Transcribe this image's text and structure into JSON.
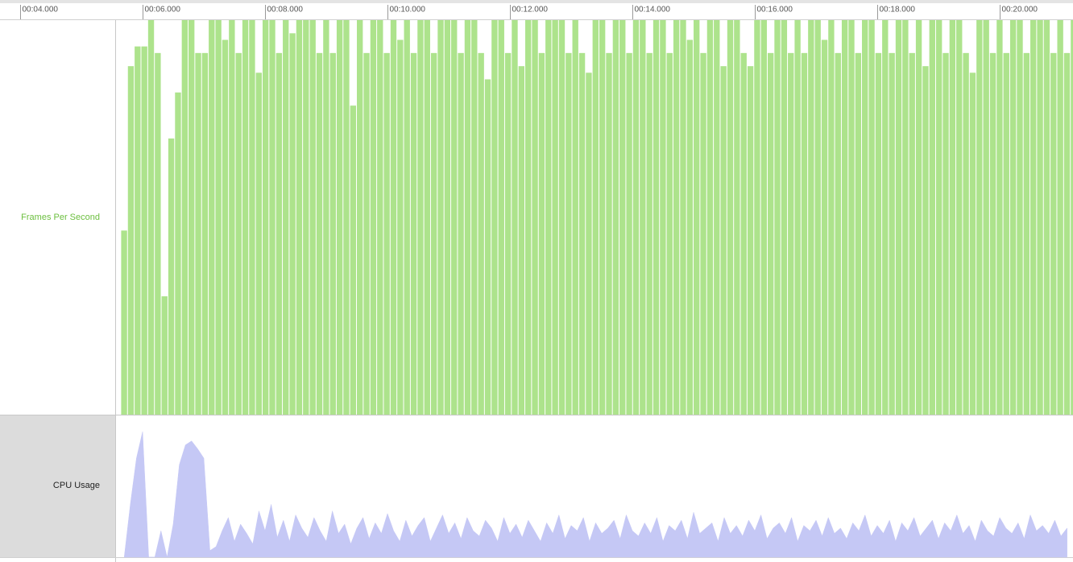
{
  "chart_data": [
    {
      "type": "bar",
      "name": "Frames Per Second",
      "color": "#ade38c",
      "xlim": [
        3.671,
        21.197
      ],
      "xticks": [
        {
          "value": 4,
          "label": "00:04.000"
        },
        {
          "value": 6,
          "label": "00:06.000"
        },
        {
          "value": 8,
          "label": "00:08.000"
        },
        {
          "value": 10,
          "label": "00:10.000"
        },
        {
          "value": 12,
          "label": "00:12.000"
        },
        {
          "value": 14,
          "label": "00:14.000"
        },
        {
          "value": 16,
          "label": "00:16.000"
        },
        {
          "value": 18,
          "label": "00:18.000"
        },
        {
          "value": 20,
          "label": "00:20.000"
        }
      ],
      "ylim": [
        0,
        60
      ],
      "x": [
        5.65,
        5.76,
        5.87,
        5.98,
        6.09,
        6.2,
        6.31,
        6.42,
        6.53,
        6.64,
        6.75,
        6.86,
        6.97,
        7.08,
        7.19,
        7.3,
        7.41,
        7.52,
        7.63,
        7.74,
        7.85,
        7.96,
        8.07,
        8.18,
        8.29,
        8.4,
        8.51,
        8.62,
        8.73,
        8.84,
        8.95,
        9.06,
        9.17,
        9.28,
        9.39,
        9.5,
        9.61,
        9.72,
        9.83,
        9.94,
        10.05,
        10.16,
        10.27,
        10.38,
        10.49,
        10.6,
        10.71,
        10.82,
        10.93,
        11.04,
        11.15,
        11.26,
        11.37,
        11.48,
        11.59,
        11.7,
        11.81,
        11.92,
        12.03,
        12.14,
        12.25,
        12.36,
        12.47,
        12.58,
        12.69,
        12.8,
        12.91,
        13.02,
        13.13,
        13.24,
        13.35,
        13.46,
        13.57,
        13.68,
        13.79,
        13.9,
        14.01,
        14.12,
        14.23,
        14.34,
        14.45,
        14.56,
        14.67,
        14.78,
        14.89,
        15,
        15.11,
        15.22,
        15.33,
        15.44,
        15.55,
        15.66,
        15.77,
        15.88,
        15.99,
        16.1,
        16.21,
        16.32,
        16.43,
        16.54,
        16.65,
        16.76,
        16.87,
        16.98,
        17.09,
        17.2,
        17.31,
        17.42,
        17.53,
        17.64,
        17.75,
        17.86,
        17.97,
        18.08,
        18.19,
        18.3,
        18.41,
        18.52,
        18.63,
        18.74,
        18.85,
        18.96,
        19.07,
        19.18,
        19.29,
        19.4,
        19.51,
        19.62,
        19.73,
        19.84,
        19.95,
        20.06,
        20.17,
        20.28,
        20.39,
        20.5,
        20.61,
        20.72,
        20.83,
        20.94,
        21.05,
        21.16
      ],
      "values": [
        28,
        53,
        56,
        56,
        60,
        55,
        18,
        42,
        49,
        60,
        60,
        55,
        55,
        60,
        60,
        57,
        60,
        55,
        60,
        60,
        52,
        60,
        60,
        55,
        60,
        58,
        60,
        60,
        60,
        55,
        60,
        55,
        60,
        60,
        47,
        60,
        55,
        60,
        60,
        55,
        60,
        57,
        60,
        55,
        60,
        60,
        55,
        60,
        60,
        60,
        55,
        60,
        60,
        55,
        51,
        60,
        60,
        55,
        60,
        53,
        60,
        60,
        55,
        60,
        60,
        60,
        55,
        60,
        55,
        52,
        60,
        60,
        55,
        60,
        60,
        55,
        60,
        60,
        55,
        60,
        60,
        55,
        60,
        60,
        57,
        60,
        55,
        60,
        60,
        53,
        60,
        60,
        55,
        53,
        60,
        60,
        55,
        60,
        60,
        55,
        60,
        55,
        60,
        60,
        57,
        60,
        55,
        60,
        60,
        55,
        60,
        60,
        55,
        60,
        55,
        60,
        60,
        55,
        60,
        53,
        60,
        60,
        55,
        60,
        60,
        55,
        52,
        60,
        60,
        55,
        60,
        55,
        60,
        60,
        55,
        60,
        60,
        60,
        55,
        60,
        55,
        60
      ]
    },
    {
      "type": "area",
      "name": "CPU Usage",
      "color": "#c5c8f5",
      "xlim": [
        3.671,
        21.197
      ],
      "ylim": [
        0,
        100
      ],
      "x": [
        5.7,
        5.8,
        5.9,
        6,
        6.1,
        6.2,
        6.3,
        6.4,
        6.5,
        6.6,
        6.7,
        6.8,
        6.9,
        7,
        7.1,
        7.2,
        7.3,
        7.4,
        7.5,
        7.6,
        7.7,
        7.8,
        7.9,
        8,
        8.1,
        8.2,
        8.3,
        8.4,
        8.5,
        8.6,
        8.7,
        8.8,
        8.9,
        9,
        9.1,
        9.2,
        9.3,
        9.4,
        9.5,
        9.6,
        9.7,
        9.8,
        9.9,
        10,
        10.1,
        10.2,
        10.3,
        10.4,
        10.5,
        10.6,
        10.7,
        10.8,
        10.9,
        11,
        11.1,
        11.2,
        11.3,
        11.4,
        11.5,
        11.6,
        11.7,
        11.8,
        11.9,
        12,
        12.1,
        12.2,
        12.3,
        12.4,
        12.5,
        12.6,
        12.7,
        12.8,
        12.9,
        13,
        13.1,
        13.2,
        13.3,
        13.4,
        13.5,
        13.6,
        13.7,
        13.8,
        13.9,
        14,
        14.1,
        14.2,
        14.3,
        14.4,
        14.5,
        14.6,
        14.7,
        14.8,
        14.9,
        15,
        15.1,
        15.2,
        15.3,
        15.4,
        15.5,
        15.6,
        15.7,
        15.8,
        15.9,
        16,
        16.1,
        16.2,
        16.3,
        16.4,
        16.5,
        16.6,
        16.7,
        16.8,
        16.9,
        17,
        17.1,
        17.2,
        17.3,
        17.4,
        17.5,
        17.6,
        17.7,
        17.8,
        17.9,
        18,
        18.1,
        18.2,
        18.3,
        18.4,
        18.5,
        18.6,
        18.7,
        18.8,
        18.9,
        19,
        19.1,
        19.2,
        19.3,
        19.4,
        19.5,
        19.6,
        19.7,
        19.8,
        19.9,
        20,
        20.1,
        20.2,
        20.3,
        20.4,
        20.5,
        20.6,
        20.7,
        20.8,
        20.9,
        21,
        21.1
      ],
      "values": [
        0,
        40,
        75,
        95,
        0,
        0,
        20,
        0,
        25,
        70,
        85,
        88,
        82,
        75,
        5,
        8,
        20,
        30,
        12,
        25,
        18,
        10,
        35,
        20,
        40,
        15,
        28,
        12,
        32,
        22,
        15,
        30,
        20,
        12,
        35,
        18,
        25,
        10,
        22,
        30,
        14,
        26,
        18,
        33,
        20,
        12,
        28,
        16,
        24,
        30,
        12,
        22,
        32,
        18,
        26,
        14,
        30,
        20,
        16,
        28,
        22,
        12,
        30,
        18,
        25,
        15,
        28,
        20,
        12,
        26,
        18,
        32,
        14,
        24,
        20,
        30,
        12,
        26,
        18,
        22,
        28,
        14,
        32,
        20,
        16,
        26,
        18,
        30,
        12,
        24,
        20,
        28,
        14,
        34,
        18,
        22,
        26,
        12,
        30,
        18,
        24,
        16,
        28,
        20,
        32,
        14,
        22,
        26,
        18,
        30,
        12,
        24,
        20,
        28,
        16,
        30,
        18,
        22,
        14,
        26,
        20,
        32,
        16,
        24,
        18,
        28,
        12,
        26,
        20,
        30,
        16,
        22,
        28,
        14,
        26,
        20,
        32,
        18,
        24,
        12,
        28,
        20,
        16,
        30,
        22,
        18,
        26,
        14,
        32,
        20,
        24,
        18,
        28,
        16,
        22
      ]
    }
  ]
}
